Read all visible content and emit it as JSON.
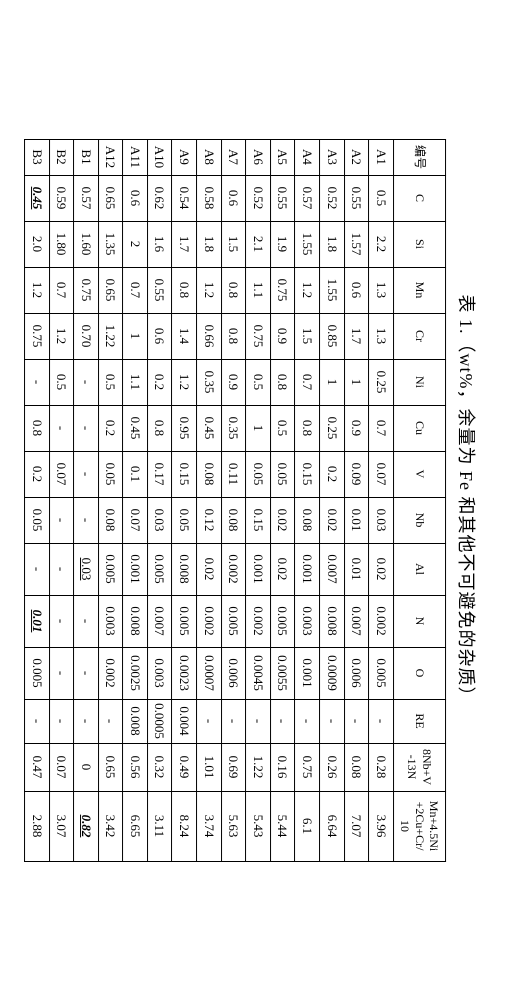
{
  "caption": "表 1.（wt%，余量为 Fe 和其他不可避免的杂质）",
  "headers": [
    "编号",
    "C",
    "Si",
    "Mn",
    "Cr",
    "Ni",
    "Cu",
    "V",
    "Nb",
    "Al",
    "N",
    "O",
    "RE",
    "8Nb+V\n-13N",
    "Mn+4.5Ni\n+2Cu+Cr/\n10"
  ],
  "rowLabels": [
    "A1",
    "A2",
    "A3",
    "A4",
    "A5",
    "A6",
    "A7",
    "A8",
    "A9",
    "A10",
    "A11",
    "A12",
    "B1",
    "B2",
    "B3"
  ],
  "rows": [
    [
      "0.5",
      "2.2",
      "1.3",
      "1.3",
      "0.25",
      "0.7",
      "0.07",
      "0.03",
      "0.02",
      "0.002",
      "0.005",
      "-",
      "0.28",
      "3.96"
    ],
    [
      "0.55",
      "1.57",
      "0.6",
      "1.7",
      "1",
      "0.9",
      "0.09",
      "0.01",
      "0.01",
      "0.007",
      "0.006",
      "-",
      "0.08",
      "7.07"
    ],
    [
      "0.52",
      "1.8",
      "1.55",
      "0.85",
      "1",
      "0.25",
      "0.2",
      "0.02",
      "0.007",
      "0.008",
      "0.0009",
      "-",
      "0.26",
      "6.64"
    ],
    [
      "0.57",
      "1.55",
      "1.2",
      "1.5",
      "0.7",
      "0.8",
      "0.15",
      "0.08",
      "0.001",
      "0.003",
      "0.001",
      "-",
      "0.75",
      "6.1"
    ],
    [
      "0.55",
      "1.9",
      "0.75",
      "0.9",
      "0.8",
      "0.5",
      "0.05",
      "0.02",
      "0.02",
      "0.005",
      "0.0055",
      "-",
      "0.16",
      "5.44"
    ],
    [
      "0.52",
      "2.1",
      "1.1",
      "0.75",
      "0.5",
      "1",
      "0.05",
      "0.15",
      "0.001",
      "0.002",
      "0.0045",
      "-",
      "1.22",
      "5.43"
    ],
    [
      "0.6",
      "1.5",
      "0.8",
      "0.8",
      "0.9",
      "0.35",
      "0.11",
      "0.08",
      "0.002",
      "0.005",
      "0.006",
      "-",
      "0.69",
      "5.63"
    ],
    [
      "0.58",
      "1.8",
      "1.2",
      "0.66",
      "0.35",
      "0.45",
      "0.08",
      "0.12",
      "0.02",
      "0.002",
      "0.0007",
      "-",
      "1.01",
      "3.74"
    ],
    [
      "0.54",
      "1.7",
      "0.8",
      "1.4",
      "1.2",
      "0.95",
      "0.15",
      "0.05",
      "0.008",
      "0.005",
      "0.0023",
      "0.004",
      "0.49",
      "8.24"
    ],
    [
      "0.62",
      "1.6",
      "0.55",
      "0.6",
      "0.2",
      "0.8",
      "0.17",
      "0.03",
      "0.005",
      "0.007",
      "0.003",
      "0.0005",
      "0.32",
      "3.11"
    ],
    [
      "0.6",
      "2",
      "0.7",
      "1",
      "1.1",
      "0.45",
      "0.1",
      "0.07",
      "0.001",
      "0.008",
      "0.0025",
      "0.008",
      "0.56",
      "6.65"
    ],
    [
      "0.65",
      "1.35",
      "0.65",
      "1.22",
      "0.5",
      "0.2",
      "0.05",
      "0.08",
      "0.005",
      "0.003",
      "0.002",
      "-",
      "0.65",
      "3.42"
    ],
    [
      "0.57",
      "1.60",
      "0.75",
      "0.70",
      "-",
      "-",
      "-",
      "-",
      "0.03",
      "-",
      "-",
      "-",
      "0",
      "0.82"
    ],
    [
      "0.59",
      "1.80",
      "0.7",
      "1.2",
      "0.5",
      "-",
      "0.07",
      "-",
      "-",
      "-",
      "-",
      "-",
      "0.07",
      "3.07"
    ],
    [
      "0.45",
      "2.0",
      "1.2",
      "0.75",
      "-",
      "0.8",
      "0.2",
      "0.05",
      "-",
      "0.01",
      "0.005",
      "-",
      "0.47",
      "2.88"
    ]
  ],
  "special": {
    "B1-last": "bi",
    "B1-Al": "u",
    "B3-C": "bi",
    "B3-N": "bi"
  }
}
